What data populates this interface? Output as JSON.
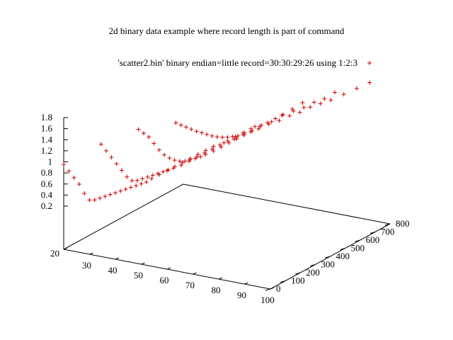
{
  "chart_data": {
    "type": "scatter",
    "title": "2d binary data example where record length is part of command",
    "legend": {
      "label": "'scatter2.bin' binary endian=little record=30:30:29:26 using 1:2:3",
      "placement": "top-right",
      "marker": "plus"
    },
    "colors": {
      "series": "#cc0000",
      "axes": "#000000",
      "background": "#ffffff"
    },
    "x_axis": {
      "ticks": [
        "20",
        "30",
        "40",
        "50",
        "60",
        "70",
        "80",
        "90",
        "100"
      ],
      "range": [
        20,
        100
      ]
    },
    "y_axis": {
      "ticks": [
        "0",
        "100",
        "200",
        "300",
        "400",
        "500",
        "600",
        "700",
        "800"
      ],
      "range": [
        0,
        800
      ]
    },
    "z_axis": {
      "ticks": [
        "0.2",
        "0.4",
        "0.6",
        "0.8",
        "1",
        "1.2",
        "1.4",
        "1.6",
        "1.8"
      ],
      "range": [
        0.2,
        1.8
      ]
    },
    "series": [
      {
        "records": [
          {
            "y": 0,
            "points": [
              [
                20,
                0.95
              ],
              [
                22,
                0.85
              ],
              [
                24,
                0.75
              ],
              [
                26,
                0.65
              ],
              [
                28,
                0.5
              ],
              [
                30,
                0.4
              ],
              [
                32,
                0.42
              ],
              [
                34,
                0.47
              ],
              [
                36,
                0.52
              ],
              [
                38,
                0.57
              ],
              [
                40,
                0.62
              ],
              [
                42,
                0.67
              ],
              [
                44,
                0.72
              ],
              [
                46,
                0.77
              ],
              [
                48,
                0.82
              ],
              [
                50,
                0.87
              ],
              [
                52,
                0.92
              ],
              [
                54,
                1.0
              ],
              [
                57,
                1.1
              ],
              [
                60,
                1.2
              ],
              [
                63,
                1.3
              ],
              [
                66,
                1.4
              ],
              [
                69,
                1.5
              ],
              [
                72,
                1.6
              ],
              [
                75,
                1.7
              ],
              [
                78,
                1.8
              ],
              [
                82,
                1.9
              ],
              [
                86,
                2.0
              ],
              [
                90,
                2.15
              ],
              [
                94,
                2.3
              ]
            ]
          },
          {
            "y": 250,
            "points": [
              [
                20,
                0.95
              ],
              [
                22,
                0.85
              ],
              [
                24,
                0.75
              ],
              [
                26,
                0.65
              ],
              [
                28,
                0.55
              ],
              [
                30,
                0.45
              ],
              [
                32,
                0.4
              ],
              [
                34,
                0.42
              ],
              [
                36,
                0.47
              ],
              [
                38,
                0.52
              ],
              [
                40,
                0.57
              ],
              [
                42,
                0.62
              ],
              [
                44,
                0.67
              ],
              [
                46,
                0.72
              ],
              [
                48,
                0.77
              ],
              [
                51,
                0.85
              ],
              [
                54,
                0.95
              ],
              [
                57,
                1.05
              ],
              [
                60,
                1.15
              ],
              [
                63,
                1.25
              ],
              [
                66,
                1.35
              ],
              [
                69,
                1.45
              ],
              [
                72,
                1.55
              ],
              [
                75,
                1.65
              ],
              [
                78,
                1.75
              ],
              [
                82,
                1.85
              ],
              [
                86,
                1.95
              ],
              [
                90,
                2.1
              ],
              [
                94,
                2.25
              ],
              [
                98,
                2.4
              ]
            ]
          },
          {
            "y": 500,
            "points": [
              [
                20,
                0.85
              ],
              [
                22,
                0.8
              ],
              [
                24,
                0.75
              ],
              [
                26,
                0.65
              ],
              [
                28,
                0.55
              ],
              [
                30,
                0.48
              ],
              [
                32,
                0.44
              ],
              [
                34,
                0.42
              ],
              [
                36,
                0.42
              ],
              [
                38,
                0.44
              ],
              [
                40,
                0.48
              ],
              [
                42,
                0.52
              ],
              [
                44,
                0.57
              ],
              [
                46,
                0.63
              ],
              [
                49,
                0.72
              ],
              [
                52,
                0.82
              ],
              [
                55,
                0.92
              ],
              [
                58,
                1.02
              ],
              [
                61,
                1.12
              ],
              [
                64,
                1.22
              ],
              [
                67,
                1.32
              ],
              [
                70,
                1.42
              ],
              [
                73,
                1.52
              ],
              [
                76,
                1.62
              ],
              [
                80,
                1.72
              ],
              [
                84,
                1.82
              ],
              [
                88,
                1.95
              ],
              [
                92,
                2.05
              ],
              [
                96,
                2.2
              ]
            ]
          },
          {
            "y": 750,
            "points": [
              [
                20,
                0.6
              ],
              [
                22,
                0.58
              ],
              [
                24,
                0.56
              ],
              [
                26,
                0.54
              ],
              [
                28,
                0.52
              ],
              [
                30,
                0.51
              ],
              [
                32,
                0.5
              ],
              [
                34,
                0.49
              ],
              [
                36,
                0.49
              ],
              [
                38,
                0.5
              ],
              [
                40,
                0.52
              ],
              [
                42,
                0.55
              ],
              [
                44,
                0.58
              ],
              [
                46,
                0.62
              ],
              [
                49,
                0.7
              ],
              [
                52,
                0.78
              ],
              [
                56,
                0.9
              ],
              [
                60,
                1.0
              ],
              [
                64,
                1.12
              ],
              [
                68,
                1.22
              ],
              [
                72,
                1.35
              ],
              [
                76,
                1.45
              ],
              [
                80,
                1.55
              ],
              [
                85,
                1.7
              ],
              [
                90,
                1.85
              ],
              [
                95,
                2.0
              ]
            ]
          }
        ]
      }
    ]
  }
}
